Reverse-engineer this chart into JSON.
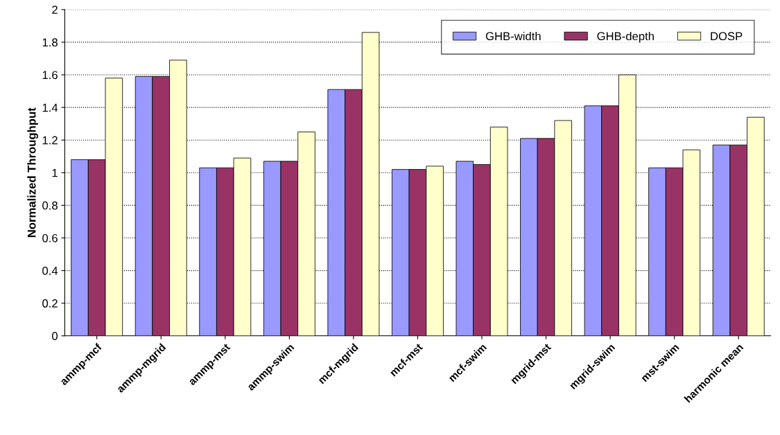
{
  "chart_data": {
    "type": "bar",
    "ylabel": "Normalized Throughput",
    "categories": [
      "ammp-mcf",
      "ammp-mgrid",
      "ammp-mst",
      "ammp-swim",
      "mcf-mgrid",
      "mcf-mst",
      "mcf-swim",
      "mgrid-mst",
      "mgrid-swim",
      "mst-swim",
      "harmonic mean"
    ],
    "series": [
      {
        "name": "GHB-width",
        "color": "#9999ff",
        "values": [
          1.08,
          1.59,
          1.03,
          1.07,
          1.51,
          1.02,
          1.07,
          1.21,
          1.41,
          1.03,
          1.17
        ]
      },
      {
        "name": "GHB-depth",
        "color": "#993366",
        "values": [
          1.08,
          1.59,
          1.03,
          1.07,
          1.51,
          1.02,
          1.05,
          1.21,
          1.41,
          1.03,
          1.17
        ]
      },
      {
        "name": "DOSP",
        "color": "#ffffcc",
        "values": [
          1.58,
          1.69,
          1.09,
          1.25,
          1.86,
          1.04,
          1.28,
          1.32,
          1.6,
          1.14,
          1.34
        ]
      }
    ],
    "ylim": [
      0,
      2
    ],
    "yticks": [
      0,
      0.2,
      0.4,
      0.6,
      0.8,
      1,
      1.2,
      1.4,
      1.6,
      1.8,
      2
    ],
    "grid": "y",
    "legend": "top right"
  }
}
